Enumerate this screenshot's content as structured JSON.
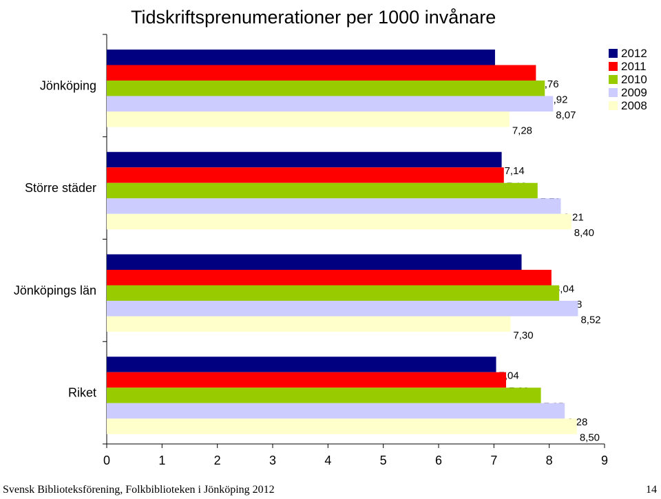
{
  "page": {
    "footer_text": "Svensk Biblioteksförening, Folkbiblioteken i Jönköping 2012",
    "page_number": "14"
  },
  "chart_data": {
    "type": "bar",
    "orientation": "horizontal",
    "title": "Tidskriftsprenumerationer per 1000 invånare",
    "categories": [
      "Jönköping",
      "Större städer",
      "Jönköpings län",
      "Riket"
    ],
    "series": [
      {
        "name": "2012",
        "color": "#000080",
        "values": [
          7.02,
          7.14,
          7.5,
          7.04
        ],
        "labels": [
          "7,02",
          "7,14",
          "7,50",
          "7,04"
        ]
      },
      {
        "name": "2011",
        "color": "#ff0000",
        "values": [
          7.76,
          7.18,
          8.04,
          7.22
        ],
        "labels": [
          "7,76",
          "7,18",
          "8,04",
          "7,22"
        ]
      },
      {
        "name": "2010",
        "color": "#99cc00",
        "values": [
          7.92,
          7.79,
          8.18,
          7.85
        ],
        "labels": [
          "7,92",
          "7,79",
          "8,18",
          "7,85"
        ]
      },
      {
        "name": "2009",
        "color": "#ccccff",
        "values": [
          8.07,
          8.21,
          8.52,
          8.28
        ],
        "labels": [
          "8,07",
          "8,21",
          "8,52",
          "8,28"
        ]
      },
      {
        "name": "2008",
        "color": "#ffffcc",
        "values": [
          7.28,
          8.4,
          7.3,
          8.5
        ],
        "labels": [
          "7,28",
          "8,40",
          "7,30",
          "8,50"
        ]
      }
    ],
    "xlim": [
      0,
      9
    ],
    "x_ticks": [
      "0",
      "1",
      "2",
      "3",
      "4",
      "5",
      "6",
      "7",
      "8",
      "9"
    ],
    "legend_position": "top-right",
    "grid": false
  }
}
